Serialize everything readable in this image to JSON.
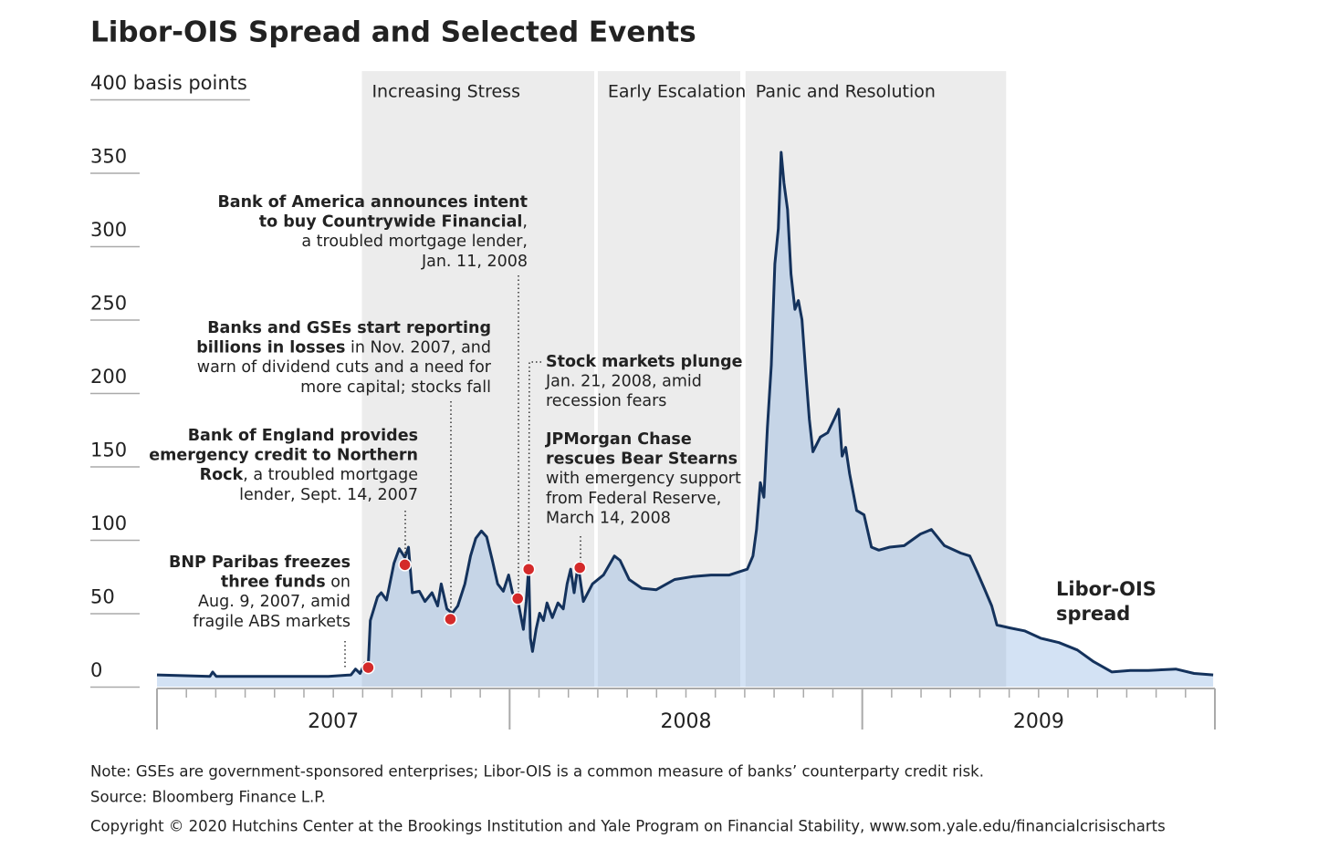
{
  "chart_data": {
    "type": "area",
    "title": "Libor-OIS Spread and Selected  Events",
    "xlim": [
      2007,
      2010
    ],
    "xticks": [
      {
        "value": 2007.5,
        "label": "2007"
      },
      {
        "value": 2008.5,
        "label": "2008"
      },
      {
        "value": 2009.5,
        "label": "2009"
      }
    ],
    "ylim": [
      0,
      400
    ],
    "yticks": [
      0,
      50,
      100,
      150,
      200,
      250,
      300,
      350,
      {
        "value": 400,
        "label": "400 basis points"
      }
    ],
    "regions": [
      {
        "label": "Increasing Stress",
        "start": 2007.581,
        "end": 2008.24
      },
      {
        "label": "Early Escalation",
        "start": 2008.25,
        "end": 2008.654
      },
      {
        "label": "Panic and Resolution",
        "start": 2008.669,
        "end": 2009.408
      }
    ],
    "series": [
      {
        "name": "Libor-OIS spread",
        "color": "#14325c",
        "x": [
          2007.0,
          2007.15,
          2007.158,
          2007.168,
          2007.331,
          2007.486,
          2007.55,
          2007.563,
          2007.576,
          2007.589,
          2007.599,
          2007.605,
          2007.625,
          2007.636,
          2007.651,
          2007.672,
          2007.687,
          2007.703,
          2007.713,
          2007.724,
          2007.744,
          2007.76,
          2007.78,
          2007.796,
          2007.806,
          2007.822,
          2007.837,
          2007.853,
          2007.873,
          2007.889,
          2007.904,
          2007.92,
          2007.935,
          2007.951,
          2007.966,
          2007.982,
          2007.997,
          2008.008,
          2008.023,
          2008.039,
          2008.047,
          2008.054,
          2008.059,
          2008.065,
          2008.075,
          2008.085,
          2008.096,
          2008.106,
          2008.121,
          2008.137,
          2008.152,
          2008.163,
          2008.173,
          2008.183,
          2008.194,
          2008.209,
          2008.235,
          2008.266,
          2008.297,
          2008.313,
          2008.339,
          2008.375,
          2008.416,
          2008.468,
          2008.519,
          2008.571,
          2008.623,
          2008.674,
          2008.69,
          2008.7,
          2008.711,
          2008.721,
          2008.731,
          2008.742,
          2008.752,
          2008.762,
          2008.77,
          2008.778,
          2008.788,
          2008.798,
          2008.809,
          2008.819,
          2008.829,
          2008.84,
          2008.85,
          2008.86,
          2008.881,
          2008.902,
          2008.922,
          2008.933,
          2008.943,
          2008.953,
          2008.964,
          2008.984,
          2009.005,
          2009.026,
          2009.047,
          2009.078,
          2009.119,
          2009.165,
          2009.196,
          2009.233,
          2009.279,
          2009.305,
          2009.326,
          2009.346,
          2009.367,
          2009.382,
          2009.419,
          2009.46,
          2009.506,
          2009.558,
          2009.61,
          2009.656,
          2009.708,
          2009.76,
          2009.811,
          2009.889,
          2009.941,
          2009.995
        ],
        "values": [
          8,
          7,
          10,
          7,
          7,
          7,
          8,
          12,
          9,
          16,
          14,
          45,
          61,
          64,
          59,
          84,
          94,
          88,
          95,
          64,
          65,
          58,
          64,
          55,
          70,
          53,
          50,
          55,
          70,
          89,
          101,
          106,
          102,
          86,
          70,
          65,
          76,
          64,
          59,
          39,
          58,
          81,
          33,
          24,
          39,
          50,
          45,
          57,
          47,
          57,
          53,
          70,
          80,
          64,
          83,
          58,
          70,
          76,
          89,
          86,
          73,
          67,
          66,
          73,
          75,
          76,
          76,
          80,
          89,
          107,
          139,
          129,
          176,
          219,
          288,
          312,
          364,
          343,
          325,
          281,
          257,
          263,
          250,
          213,
          182,
          160,
          170,
          173,
          183,
          189,
          157,
          163,
          145,
          120,
          117,
          95,
          93,
          95,
          96,
          104,
          107,
          96,
          91,
          89,
          78,
          67,
          55,
          42,
          40,
          38,
          33,
          30,
          25,
          17,
          10,
          11,
          11,
          12,
          9,
          8
        ]
      }
    ],
    "events": [
      {
        "x": 2007.599,
        "value": 13,
        "lines": [
          [
            {
              "text": "BNP Paribas freezes",
              "bold": true
            }
          ],
          [
            {
              "text": "three funds",
              "bold": true
            },
            {
              "text": " on",
              "bold": false
            }
          ],
          [
            {
              "text": "Aug. 9, 2007, amid",
              "bold": false
            }
          ],
          [
            {
              "text": "fragile ABS markets",
              "bold": false
            }
          ]
        ]
      },
      {
        "x": 2007.703,
        "value": 83,
        "lines": [
          [
            {
              "text": "Bank of England provides",
              "bold": true
            }
          ],
          [
            {
              "text": "emergency credit to Northern",
              "bold": true
            }
          ],
          [
            {
              "text": "Rock",
              "bold": true
            },
            {
              "text": ", a troubled mortgage",
              "bold": false
            }
          ],
          [
            {
              "text": "lender, Sept. 14, 2007",
              "bold": false
            }
          ]
        ]
      },
      {
        "x": 2007.832,
        "value": 46,
        "lines": [
          [
            {
              "text": "Banks and GSEs start reporting",
              "bold": true
            }
          ],
          [
            {
              "text": "billions in losses",
              "bold": true
            },
            {
              "text": " in Nov. 2007, and",
              "bold": false
            }
          ],
          [
            {
              "text": "warn of dividend cuts and a need for",
              "bold": false
            }
          ],
          [
            {
              "text": "more capital; stocks fall",
              "bold": false
            }
          ]
        ]
      },
      {
        "x": 2008.023,
        "value": 60,
        "lines": [
          [
            {
              "text": "Bank of America announces intent",
              "bold": true
            }
          ],
          [
            {
              "text": "to buy Countrywide Financial",
              "bold": true
            },
            {
              "text": ",",
              "bold": false
            }
          ],
          [
            {
              "text": "a troubled mortgage lender,",
              "bold": false
            }
          ],
          [
            {
              "text": "Jan. 11, 2008",
              "bold": false
            }
          ]
        ]
      },
      {
        "x": 2008.054,
        "value": 80,
        "lines": [
          [
            {
              "text": "Stock markets plunge",
              "bold": true
            }
          ],
          [
            {
              "text": "Jan. 21, 2008, amid",
              "bold": false
            }
          ],
          [
            {
              "text": "recession fears",
              "bold": false
            }
          ]
        ]
      },
      {
        "x": 2008.199,
        "value": 81,
        "lines": [
          [
            {
              "text": "JPMorgan Chase",
              "bold": true
            }
          ],
          [
            {
              "text": "rescues Bear Stearns",
              "bold": true
            }
          ],
          [
            {
              "text": "with emergency support",
              "bold": false
            }
          ],
          [
            {
              "text": "from Federal Reserve,",
              "bold": false
            }
          ],
          [
            {
              "text": "March 14, 2008",
              "bold": false
            }
          ]
        ]
      }
    ],
    "note": "Note: GSEs are government-sponsored enterprises; Libor-OIS is a common measure of banks’ counterparty credit risk.",
    "source": "Source: Bloomberg Finance L.P.",
    "copyright": "Copyright © 2020 Hutchins Center at the Brookings Institution and Yale Program on Financial Stability, www.som.yale.edu/financialcrisischarts"
  }
}
